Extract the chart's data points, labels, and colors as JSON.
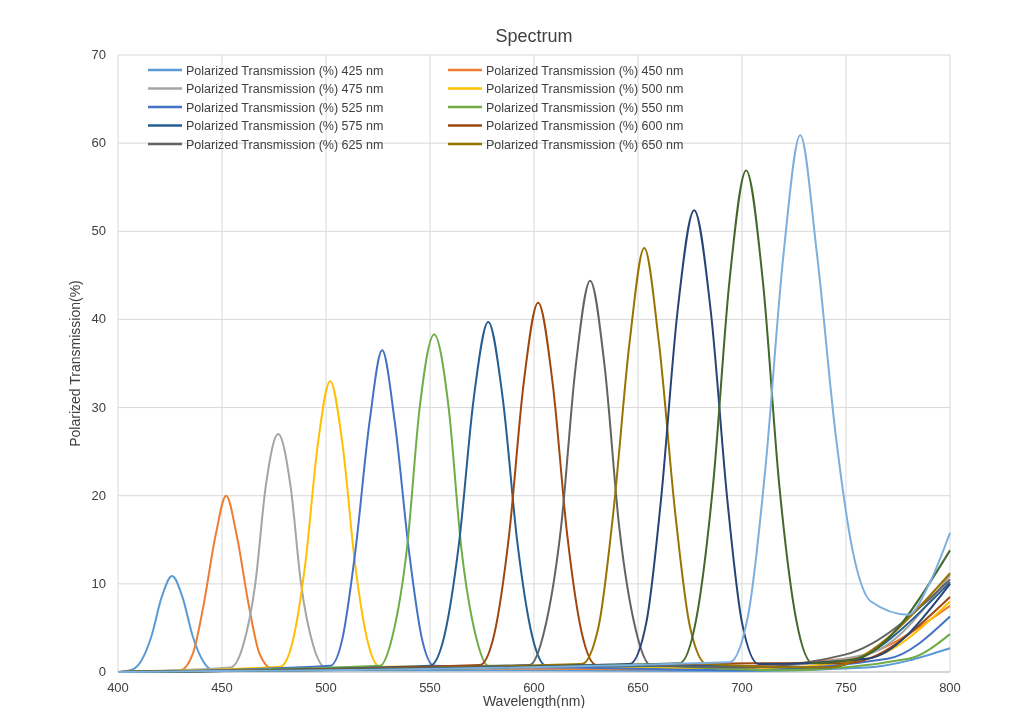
{
  "chart_data": {
    "type": "line",
    "title": "Spectrum",
    "xlabel": "Wavelength(nm)",
    "ylabel": "Polarized Transmission(%)",
    "xlim": [
      400,
      800
    ],
    "xticks": [
      400,
      450,
      500,
      550,
      600,
      650,
      700,
      750,
      800
    ],
    "ylim": [
      0,
      70
    ],
    "yticks": [
      0,
      10,
      20,
      30,
      40,
      50,
      60,
      70
    ],
    "grid": true,
    "legend": "top",
    "marker": "none",
    "line_style": "solid",
    "series": [
      {
        "name": "Polarized Transmission (%) 425 nm",
        "color": "#5b9bd5",
        "x": [
          400,
          406,
          411,
          416,
          421,
          426,
          431,
          436,
          441,
          446,
          500,
          600,
          700,
          760,
          800
        ],
        "values": [
          0,
          0.2,
          1.2,
          4.0,
          8.5,
          10.9,
          8.5,
          4.0,
          1.2,
          0.2,
          0.2,
          0.2,
          0.1,
          0.5,
          2.7
        ]
      },
      {
        "name": "Polarized Transmission (%) 450 nm",
        "color": "#ed7d31",
        "x": [
          400,
          430,
          436,
          441,
          447,
          452,
          457,
          463,
          468,
          474,
          520,
          650,
          750,
          800
        ],
        "values": [
          0,
          0.2,
          2.1,
          7.4,
          15.6,
          20,
          15.6,
          7.4,
          2.1,
          0.4,
          0.5,
          0.3,
          1.5,
          7.5
        ]
      },
      {
        "name": "Polarized Transmission (%) 475 nm",
        "color": "#a5a5a5",
        "x": [
          400,
          454,
          460,
          466,
          471,
          477,
          483,
          488,
          494,
          500,
          560,
          700,
          760,
          800
        ],
        "values": [
          0,
          0.5,
          2.9,
          10,
          21,
          27,
          21,
          10,
          2.9,
          0.5,
          0.5,
          0.5,
          2,
          11
        ]
      },
      {
        "name": "Polarized Transmission (%) 500 nm",
        "color": "#ffc000",
        "x": [
          400,
          478,
          484,
          490,
          496,
          502,
          508,
          514,
          520,
          526,
          600,
          700,
          760,
          800
        ],
        "values": [
          0,
          0.6,
          3.5,
          12.2,
          25.7,
          33,
          25.7,
          12.2,
          3.5,
          0.6,
          0.7,
          0.3,
          1.5,
          8
        ]
      },
      {
        "name": "Polarized Transmission (%) 525 nm",
        "color": "#4472c4",
        "x": [
          400,
          502,
          508,
          514,
          521,
          527,
          533,
          540,
          546,
          552,
          620,
          700,
          770,
          800
        ],
        "values": [
          0,
          0.7,
          3.9,
          13.5,
          28.5,
          36.5,
          28.5,
          13.5,
          3.9,
          0.7,
          0.5,
          0.2,
          1.5,
          6.3
        ]
      },
      {
        "name": "Polarized Transmission (%) 550 nm",
        "color": "#70ad47",
        "x": [
          400,
          526,
          532,
          539,
          545,
          552,
          559,
          565,
          572,
          578,
          650,
          720,
          780,
          800
        ],
        "values": [
          0,
          0.7,
          4.1,
          14.2,
          29.9,
          38.3,
          29.9,
          14.2,
          4.1,
          0.7,
          0.7,
          0.2,
          1.5,
          4.3
        ]
      },
      {
        "name": "Polarized Transmission (%) 575 nm",
        "color": "#255e91",
        "x": [
          400,
          550,
          557,
          564,
          571,
          578,
          585,
          592,
          599,
          606,
          680,
          740,
          800
        ],
        "values": [
          0,
          0.7,
          4.2,
          14.7,
          31,
          39.7,
          31,
          14.7,
          4.2,
          0.7,
          0.7,
          0.5,
          10.2
        ]
      },
      {
        "name": "Polarized Transmission (%) 600 nm",
        "color": "#9e480e",
        "x": [
          400,
          574,
          581,
          588,
          595,
          602,
          609,
          616,
          623,
          630,
          710,
          750,
          800
        ],
        "values": [
          0,
          0.8,
          4.4,
          15.5,
          32.7,
          41.9,
          32.7,
          15.5,
          4.4,
          0.8,
          1.0,
          1.0,
          8.5
        ]
      },
      {
        "name": "Polarized Transmission (%) 625 nm",
        "color": "#636363",
        "x": [
          400,
          598,
          605,
          613,
          620,
          627,
          634,
          641,
          649,
          656,
          700,
          750,
          800
        ],
        "values": [
          0,
          0.8,
          4.7,
          16.4,
          34.6,
          44.4,
          34.6,
          16.4,
          4.7,
          0.8,
          0.5,
          2,
          10.5
        ]
      },
      {
        "name": "Polarized Transmission (%) 650 nm",
        "color": "#997300",
        "x": [
          400,
          623,
          631,
          638,
          646,
          653,
          660,
          668,
          675,
          683,
          740,
          800
        ],
        "values": [
          0,
          0.9,
          5.1,
          17.8,
          37.5,
          48.1,
          37.5,
          17.8,
          5.1,
          0.9,
          0.5,
          11.2
        ]
      },
      {
        "color": "#264478",
        "x": [
          400,
          646,
          654,
          661,
          669,
          677,
          685,
          693,
          700,
          708,
          760,
          800
        ],
        "values": [
          0,
          0.9,
          5.6,
          19.4,
          40.9,
          52.4,
          40.9,
          19.4,
          5.6,
          0.9,
          1.5,
          10
        ]
      },
      {
        "color": "#43682b",
        "x": [
          400,
          670,
          678,
          686,
          694,
          702,
          710,
          718,
          726,
          734,
          755,
          800
        ],
        "values": [
          0,
          1,
          6,
          21,
          44.4,
          56.9,
          44.4,
          21,
          6,
          1,
          1.5,
          13.8
        ]
      },
      {
        "color": "#7cafdd",
        "x": [
          400,
          694,
          703,
          711,
          720,
          728,
          736,
          745,
          753,
          762,
          780,
          790,
          800
        ],
        "values": [
          0,
          1.1,
          6.5,
          22.5,
          47.5,
          60.9,
          47.5,
          27,
          14,
          8,
          6.5,
          10,
          15.8
        ]
      }
    ]
  }
}
